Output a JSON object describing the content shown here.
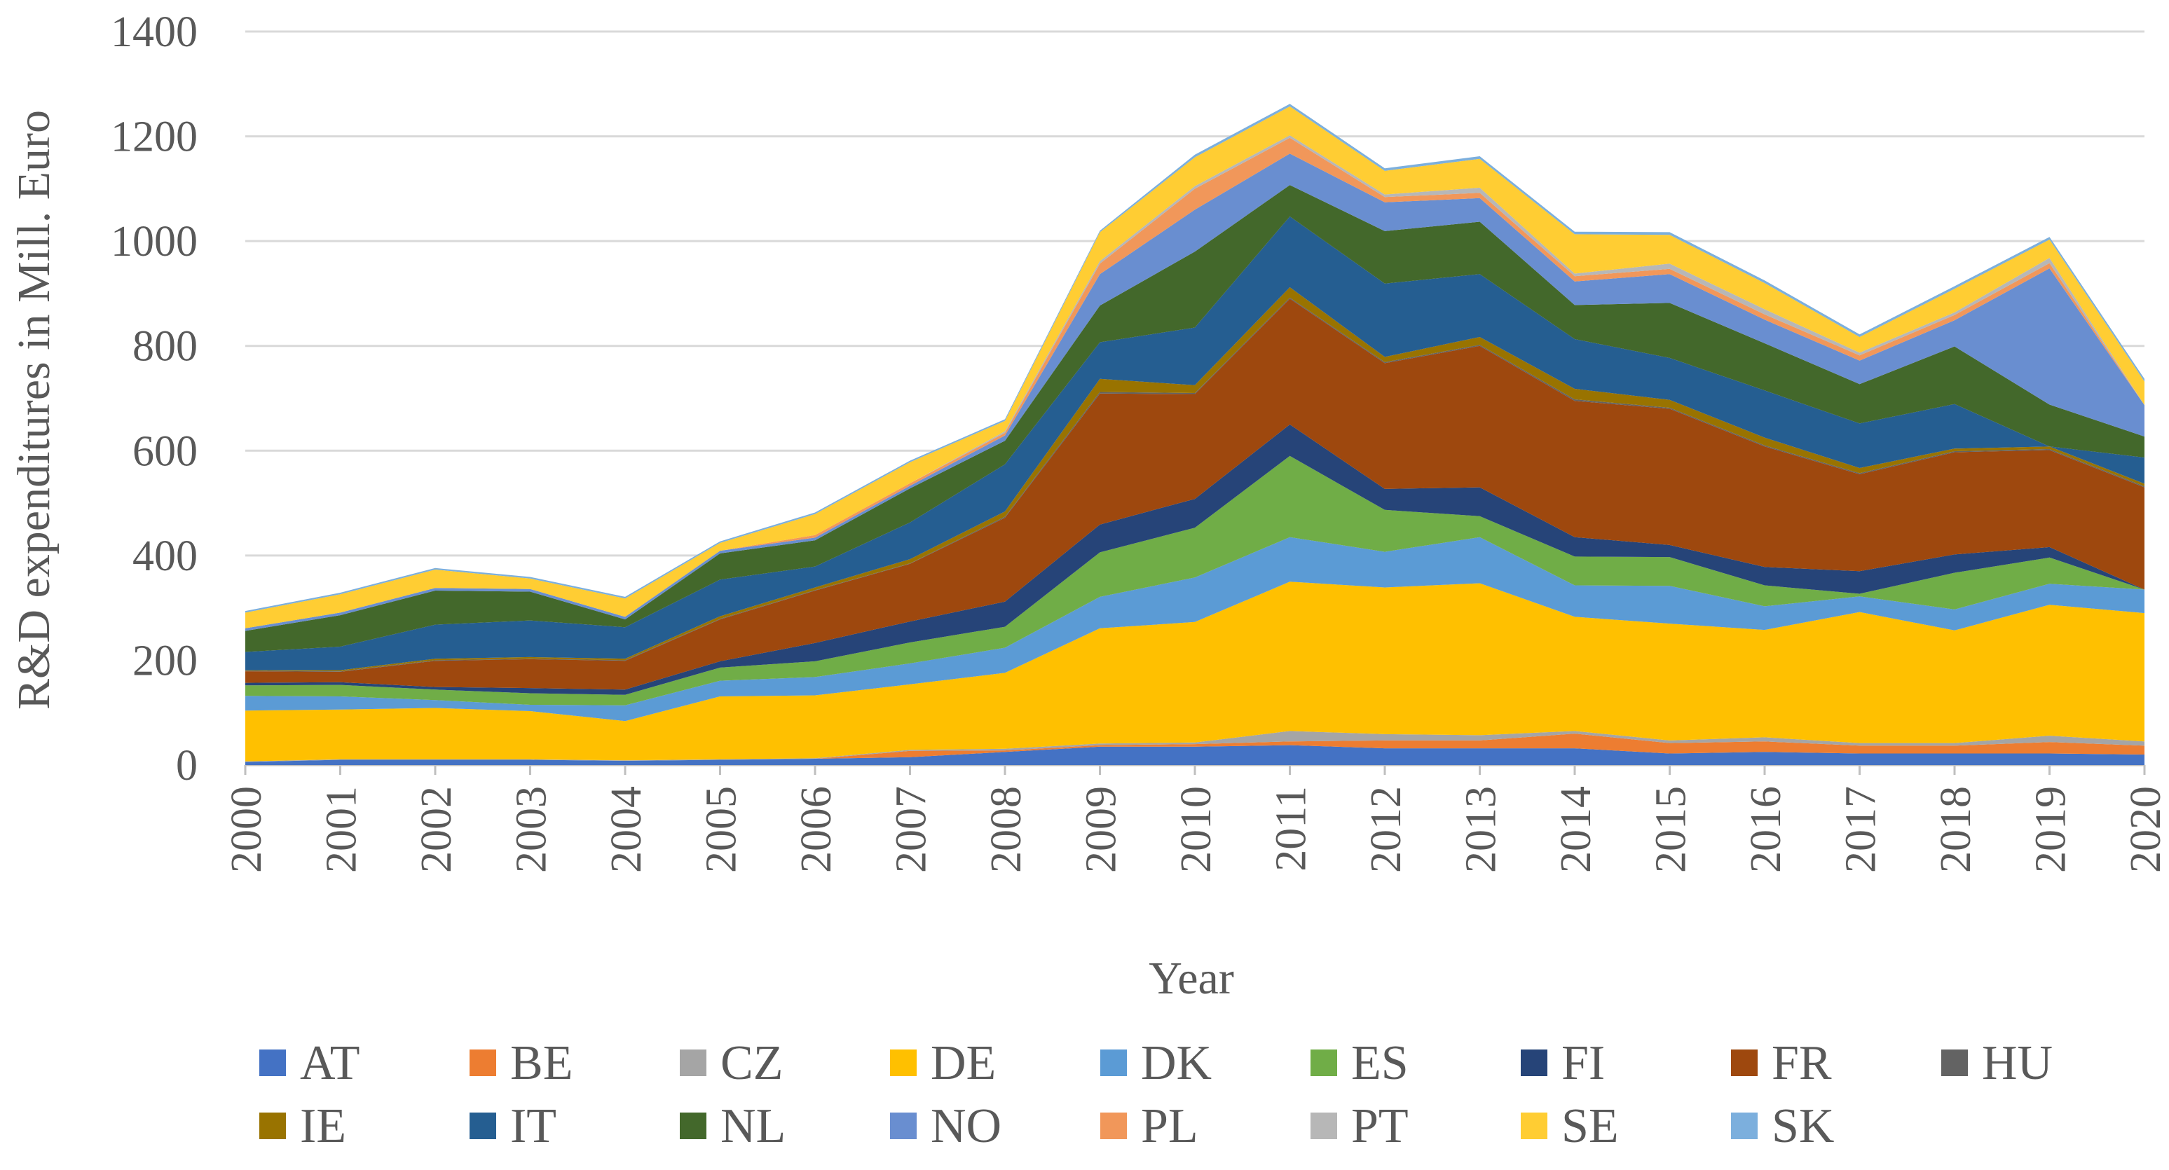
{
  "chart_data": {
    "type": "area",
    "stacked": true,
    "title": "",
    "xlabel": "Year",
    "ylabel": "R&D expenditures in Mill. Euro",
    "ylim": [
      0,
      1400
    ],
    "yticks": [
      0,
      200,
      400,
      600,
      800,
      1000,
      1200,
      1400
    ],
    "grid": true,
    "legend_position": "bottom",
    "x": [
      "2000",
      "2001",
      "2002",
      "2003",
      "2004",
      "2005",
      "2006",
      "2007",
      "2008",
      "2009",
      "2010",
      "2011",
      "2012",
      "2013",
      "2014",
      "2015",
      "2016",
      "2017",
      "2018",
      "2019",
      "2020"
    ],
    "series": [
      {
        "name": "AT",
        "color": "#4472C4",
        "values": [
          6,
          10,
          10,
          10,
          8,
          10,
          12,
          15,
          25,
          35,
          35,
          38,
          32,
          32,
          32,
          22,
          25,
          22,
          22,
          22,
          20
        ]
      },
      {
        "name": "BE",
        "color": "#ED7D31",
        "values": [
          0,
          0,
          0,
          0,
          0,
          0,
          0,
          12,
          3,
          3,
          5,
          7,
          15,
          15,
          28,
          20,
          20,
          15,
          15,
          22,
          17
        ]
      },
      {
        "name": "CZ",
        "color": "#A5A5A5",
        "values": [
          1,
          1,
          1,
          1,
          1,
          1,
          1,
          2,
          3,
          3,
          3,
          20,
          12,
          10,
          5,
          5,
          8,
          5,
          5,
          12,
          8
        ]
      },
      {
        "name": "DE",
        "color": "#FFC000",
        "values": [
          97,
          95,
          98,
          92,
          75,
          120,
          120,
          125,
          145,
          220,
          230,
          285,
          280,
          290,
          218,
          223,
          205,
          250,
          215,
          250,
          245
        ]
      },
      {
        "name": "DK",
        "color": "#5B9BD5",
        "values": [
          28,
          25,
          15,
          12,
          30,
          30,
          35,
          40,
          48,
          60,
          85,
          85,
          68,
          88,
          60,
          72,
          45,
          30,
          40,
          40,
          45
        ]
      },
      {
        "name": "ES",
        "color": "#70AD47",
        "values": [
          20,
          22,
          20,
          22,
          20,
          25,
          30,
          40,
          40,
          85,
          95,
          155,
          80,
          40,
          55,
          55,
          40,
          5,
          70,
          50,
          0
        ]
      },
      {
        "name": "FI",
        "color": "#264478",
        "values": [
          5,
          5,
          5,
          10,
          10,
          12,
          35,
          40,
          48,
          53,
          55,
          60,
          40,
          55,
          37,
          23,
          35,
          43,
          35,
          20,
          0
        ]
      },
      {
        "name": "FR",
        "color": "#9E480E",
        "values": [
          22,
          20,
          50,
          55,
          55,
          80,
          100,
          110,
          160,
          250,
          200,
          240,
          240,
          270,
          260,
          260,
          230,
          185,
          195,
          185,
          195
        ]
      },
      {
        "name": "HU",
        "color": "#636363",
        "values": [
          1,
          1,
          1,
          1,
          1,
          1,
          1,
          1,
          2,
          3,
          2,
          2,
          2,
          2,
          3,
          2,
          2,
          2,
          2,
          2,
          2
        ]
      },
      {
        "name": "IE",
        "color": "#997300",
        "values": [
          1,
          2,
          3,
          3,
          3,
          5,
          5,
          8,
          10,
          25,
          15,
          20,
          10,
          15,
          20,
          15,
          15,
          10,
          5,
          5,
          5
        ]
      },
      {
        "name": "IT",
        "color": "#255E91",
        "values": [
          35,
          45,
          65,
          70,
          60,
          70,
          40,
          70,
          90,
          70,
          110,
          135,
          140,
          120,
          95,
          80,
          90,
          85,
          85,
          0,
          50
        ]
      },
      {
        "name": "NL",
        "color": "#43682B",
        "values": [
          40,
          60,
          65,
          55,
          15,
          50,
          50,
          65,
          45,
          70,
          145,
          60,
          100,
          100,
          65,
          105,
          90,
          75,
          110,
          80,
          40
        ]
      },
      {
        "name": "NO",
        "color": "#698ED0",
        "values": [
          5,
          5,
          5,
          5,
          5,
          5,
          5,
          5,
          10,
          60,
          80,
          60,
          55,
          45,
          45,
          55,
          45,
          45,
          50,
          260,
          60
        ]
      },
      {
        "name": "PL",
        "color": "#F1975A",
        "values": [
          0,
          0,
          0,
          0,
          0,
          0,
          5,
          5,
          5,
          20,
          40,
          30,
          10,
          10,
          10,
          10,
          10,
          10,
          10,
          10,
          0
        ]
      },
      {
        "name": "PT",
        "color": "#B7B7B7",
        "values": [
          0,
          0,
          0,
          0,
          0,
          0,
          0,
          0,
          3,
          5,
          5,
          5,
          5,
          10,
          5,
          10,
          10,
          5,
          5,
          10,
          0
        ]
      },
      {
        "name": "SE",
        "color": "#FFCD33",
        "values": [
          30,
          35,
          35,
          20,
          35,
          15,
          40,
          40,
          20,
          55,
          55,
          55,
          45,
          55,
          75,
          55,
          50,
          30,
          45,
          35,
          45
        ]
      },
      {
        "name": "SK",
        "color": "#7CAFDD",
        "values": [
          3,
          3,
          3,
          3,
          3,
          3,
          3,
          3,
          3,
          3,
          5,
          5,
          5,
          5,
          5,
          5,
          5,
          5,
          5,
          5,
          5
        ]
      }
    ]
  }
}
